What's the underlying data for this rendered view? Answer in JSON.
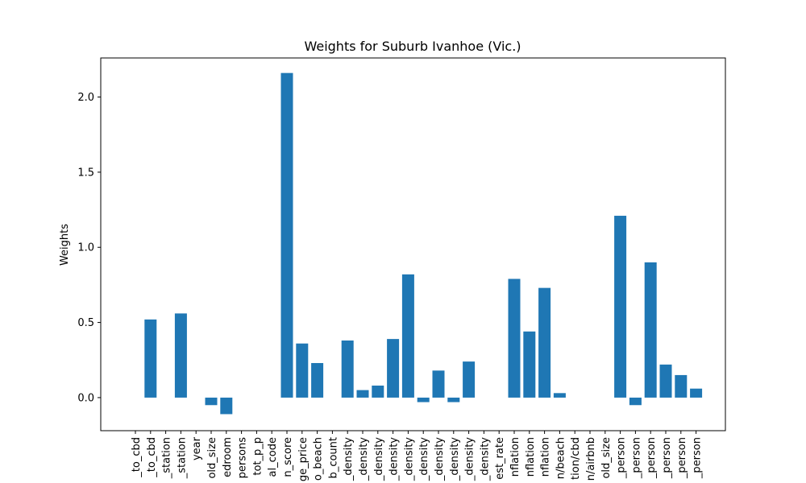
{
  "chart_data": {
    "type": "bar",
    "title": "Weights for Suburb Ivanhoe (Vic.)",
    "xlabel": "",
    "ylabel": "Weights",
    "ylim": [
      -0.22,
      2.26
    ],
    "yticks": [
      0.0,
      0.5,
      1.0,
      1.5,
      2.0
    ],
    "ytick_labels": [
      "0.0",
      "0.5",
      "1.0",
      "1.5",
      "2.0"
    ],
    "bar_color": "#1f77b4",
    "grid": false,
    "categories": [
      "_to_cbd",
      "_to_cbd",
      "_station",
      "_station",
      "year",
      "old_size",
      "edroom",
      "persons",
      "tot_p_p",
      "al_code",
      "n_score",
      "ge_price",
      "o_beach",
      "b_count",
      "_density",
      "_density",
      "_density",
      "_density",
      "_density",
      "_density",
      "_density",
      "_density",
      "_density",
      "_density",
      "est_rate",
      "nflation",
      "nflation",
      "nflation",
      "n/beach",
      "tion/cbd",
      "n/airbnb",
      "old_size",
      "_person",
      "_person",
      "_person",
      "_person",
      "_person",
      "_person"
    ],
    "values": [
      0.0,
      0.52,
      0.0,
      0.56,
      0.0,
      -0.05,
      -0.11,
      0.0,
      0.0,
      0.0,
      2.16,
      0.36,
      0.23,
      0.0,
      0.38,
      0.05,
      0.08,
      0.39,
      0.82,
      -0.03,
      0.18,
      -0.03,
      0.24,
      0.0,
      0.0,
      0.79,
      0.44,
      0.73,
      0.03,
      0.0,
      0.0,
      0.0,
      1.21,
      -0.05,
      0.9,
      0.22,
      0.15,
      0.06
    ]
  }
}
